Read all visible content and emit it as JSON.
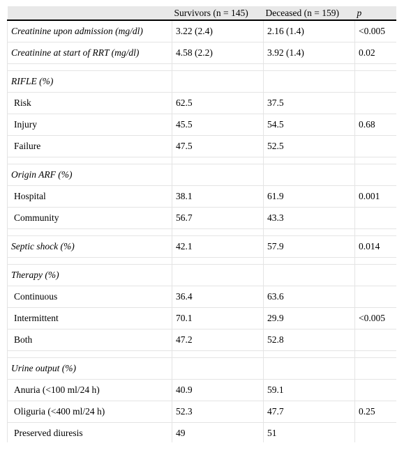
{
  "table": {
    "headers": [
      "",
      "Survivors (n = 145)",
      "Deceased (n = 159)",
      "p"
    ],
    "rows": [
      {
        "kind": "data",
        "style": "italic",
        "cells": [
          "Creatinine upon admission (mg/dl)",
          "3.22 (2.4)",
          "2.16 (1.4)",
          "<0.005"
        ]
      },
      {
        "kind": "data",
        "style": "italic",
        "cells": [
          "Creatinine at start of RRT (mg/dl)",
          "4.58 (2.2)",
          "3.92 (1.4)",
          "0.02"
        ]
      },
      {
        "kind": "spacer"
      },
      {
        "kind": "data",
        "style": "italic",
        "cells": [
          "RIFLE (%)",
          "",
          "",
          ""
        ]
      },
      {
        "kind": "data",
        "style": "sub",
        "cells": [
          "Risk",
          "62.5",
          "37.5",
          ""
        ]
      },
      {
        "kind": "data",
        "style": "sub",
        "cells": [
          "Injury",
          "45.5",
          "54.5",
          "0.68"
        ]
      },
      {
        "kind": "data",
        "style": "sub",
        "cells": [
          "Failure",
          "47.5",
          "52.5",
          ""
        ]
      },
      {
        "kind": "spacer"
      },
      {
        "kind": "data",
        "style": "italic",
        "cells": [
          "Origin ARF (%)",
          "",
          "",
          ""
        ]
      },
      {
        "kind": "data",
        "style": "sub",
        "cells": [
          "Hospital",
          "38.1",
          "61.9",
          "0.001"
        ]
      },
      {
        "kind": "data",
        "style": "sub",
        "cells": [
          "Community",
          "56.7",
          "43.3",
          ""
        ]
      },
      {
        "kind": "spacer"
      },
      {
        "kind": "data",
        "style": "italic",
        "cells": [
          "Septic shock (%)",
          "42.1",
          "57.9",
          "0.014"
        ]
      },
      {
        "kind": "spacer"
      },
      {
        "kind": "data",
        "style": "italic",
        "cells": [
          "Therapy (%)",
          "",
          "",
          ""
        ]
      },
      {
        "kind": "data",
        "style": "sub",
        "cells": [
          "Continuous",
          "36.4",
          "63.6",
          ""
        ]
      },
      {
        "kind": "data",
        "style": "sub",
        "cells": [
          "Intermittent",
          "70.1",
          "29.9",
          "<0.005"
        ]
      },
      {
        "kind": "data",
        "style": "sub",
        "cells": [
          "Both",
          "47.2",
          "52.8",
          ""
        ]
      },
      {
        "kind": "spacer"
      },
      {
        "kind": "data",
        "style": "italic",
        "cells": [
          "Urine output (%)",
          "",
          "",
          ""
        ]
      },
      {
        "kind": "data",
        "style": "sub",
        "cells": [
          "Anuria (<100 ml/24 h)",
          "40.9",
          "59.1",
          ""
        ]
      },
      {
        "kind": "data",
        "style": "sub",
        "cells": [
          "Oliguria (<400 ml/24 h)",
          "52.3",
          "47.7",
          "0.25"
        ]
      },
      {
        "kind": "data",
        "style": "sub",
        "cells": [
          "Preserved diuresis",
          "49",
          "51",
          ""
        ]
      }
    ]
  }
}
